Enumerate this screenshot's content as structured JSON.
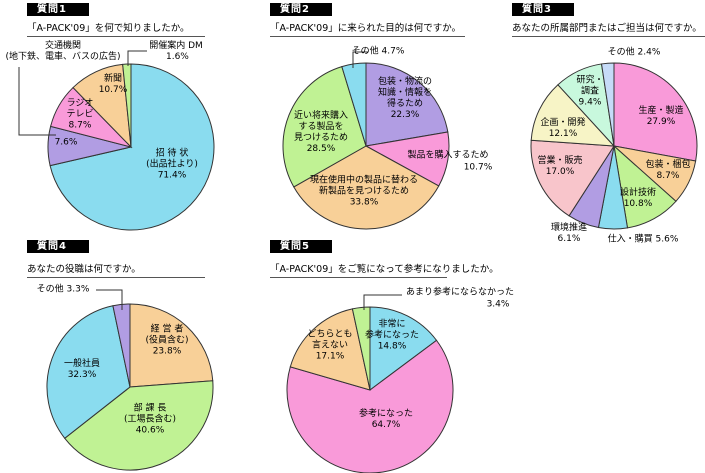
{
  "chart_data": [
    {
      "type": "pie",
      "header": "質問1",
      "title": "「A-PACK'09」を何で知りましたか。",
      "slices": [
        {
          "label": "招 待 状\n(出品社より)",
          "value": 71.4,
          "color": "#8adcef"
        },
        {
          "label": "",
          "value": 7.6,
          "color": "#b19de3"
        },
        {
          "label": "ラジオ\nテレビ",
          "value": 8.7,
          "color": "#f99ad9"
        },
        {
          "label": "新聞",
          "value": 10.7,
          "color": "#f8d098"
        },
        {
          "label": "開催案内 DM",
          "value": 1.6,
          "color": "#c0f294"
        }
      ],
      "annotations": [
        "交通機関\n(地下鉄、電車、バスの広告)"
      ],
      "value_labels": [
        "71.4%",
        "7.6%",
        "8.7%",
        "10.7%",
        "1.6%"
      ]
    },
    {
      "type": "pie",
      "header": "質問2",
      "title": "「A-PACK'09」に来られた目的は何ですか。",
      "slices": [
        {
          "label": "包装・物流の\n知識・情報を\n得るため",
          "value": 22.3,
          "color": "#b19de3"
        },
        {
          "label": "製品を購入するため",
          "value": 10.7,
          "color": "#f99ad9"
        },
        {
          "label": "現在使用中の製品に替わる\n新製品を見つけるため",
          "value": 33.8,
          "color": "#f8d098"
        },
        {
          "label": "近い将来購入\nする製品を\n見つけるため",
          "value": 28.5,
          "color": "#c0f294"
        },
        {
          "label": "その他",
          "value": 4.7,
          "color": "#8adcef"
        }
      ],
      "value_labels": [
        "22.3%",
        "10.7%",
        "33.8%",
        "28.5%",
        "4.7%"
      ]
    },
    {
      "type": "pie",
      "header": "質問3",
      "title": "あなたの所属部門またはご担当は何ですか。",
      "slices": [
        {
          "label": "生産・製造",
          "value": 27.9,
          "color": "#f99ad9"
        },
        {
          "label": "包装・梱包",
          "value": 8.7,
          "color": "#f8d098"
        },
        {
          "label": "設計技術",
          "value": 10.8,
          "color": "#c0f294"
        },
        {
          "label": "仕入・購買",
          "value": 5.6,
          "color": "#8adcef"
        },
        {
          "label": "環境推進",
          "value": 6.1,
          "color": "#b19de3"
        },
        {
          "label": "営業・販売",
          "value": 17.0,
          "color": "#f8c5cb"
        },
        {
          "label": "企画・開発",
          "value": 12.1,
          "color": "#f7f4c6"
        },
        {
          "label": "研究・\n調査",
          "value": 9.4,
          "color": "#c8f8dd"
        },
        {
          "label": "その他",
          "value": 2.4,
          "color": "#c6dbf8"
        }
      ],
      "value_labels": [
        "27.9%",
        "8.7%",
        "10.8%",
        "5.6%",
        "6.1%",
        "17.0%",
        "12.1%",
        "9.4%",
        "2.4%"
      ]
    },
    {
      "type": "pie",
      "header": "質問4",
      "title": "あなたの役職は何ですか。",
      "slices": [
        {
          "label": "経 営 者\n(役員含む)",
          "value": 23.8,
          "color": "#f8d098"
        },
        {
          "label": "部 課 長\n(工場長含む)",
          "value": 40.6,
          "color": "#c0f294"
        },
        {
          "label": "一般社員",
          "value": 32.3,
          "color": "#8adcef"
        },
        {
          "label": "その他",
          "value": 3.3,
          "color": "#b19de3"
        }
      ],
      "value_labels": [
        "23.8%",
        "40.6%",
        "32.3%",
        "3.3%"
      ]
    },
    {
      "type": "pie",
      "header": "質問5",
      "title": "「A-PACK'09」をご覧になって参考になりましたか。",
      "slices": [
        {
          "label": "非常に\n参考になった",
          "value": 14.8,
          "color": "#8adcef"
        },
        {
          "label": "参考になった",
          "value": 64.7,
          "color": "#f99ad9"
        },
        {
          "label": "どちらとも\n言えない",
          "value": 17.1,
          "color": "#f8d098"
        },
        {
          "label": "あまり参考にならなかった",
          "value": 3.4,
          "color": "#c0f294"
        }
      ],
      "value_labels": [
        "14.8%",
        "64.7%",
        "17.1%",
        "3.4%"
      ]
    }
  ]
}
